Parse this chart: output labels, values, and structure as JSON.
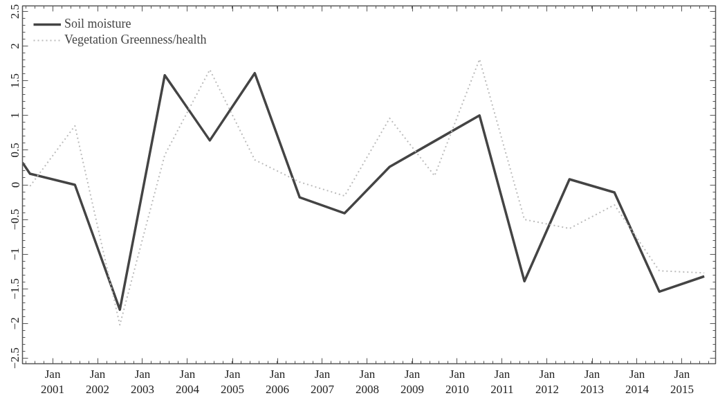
{
  "chart_data": {
    "type": "line",
    "xlim": [
      "2000-05",
      "2015-10"
    ],
    "xticks": [
      {
        "value": "2001-01",
        "label": "Jan\n2001"
      },
      {
        "value": "2002-01",
        "label": "Jan\n2002"
      },
      {
        "value": "2003-01",
        "label": "Jan\n2003"
      },
      {
        "value": "2004-01",
        "label": "Jan\n2004"
      },
      {
        "value": "2005-01",
        "label": "Jan\n2005"
      },
      {
        "value": "2006-01",
        "label": "Jan\n2006"
      },
      {
        "value": "2007-01",
        "label": "Jan\n2007"
      },
      {
        "value": "2008-01",
        "label": "Jan\n2008"
      },
      {
        "value": "2009-01",
        "label": "Jan\n2009"
      },
      {
        "value": "2010-01",
        "label": "Jan\n2010"
      },
      {
        "value": "2011-01",
        "label": "Jan\n2011"
      },
      {
        "value": "2012-01",
        "label": "Jan\n2012"
      },
      {
        "value": "2013-01",
        "label": "Jan\n2013"
      },
      {
        "value": "2014-01",
        "label": "Jan\n2014"
      },
      {
        "value": "2015-01",
        "label": "Jan\n2015"
      }
    ],
    "ylim": [
      -2.58,
      2.58
    ],
    "yticks": [
      {
        "value": -2.5,
        "label": "−2.5"
      },
      {
        "value": -2,
        "label": "−2"
      },
      {
        "value": -1.5,
        "label": "−1.5"
      },
      {
        "value": -1,
        "label": "−1"
      },
      {
        "value": -0.5,
        "label": "−0.5"
      },
      0,
      0.5,
      1,
      1.5,
      2,
      2.5
    ],
    "grid": false,
    "legend": "top left",
    "marker": "none",
    "series": [
      {
        "name": "Soil moisture",
        "color": "#444444",
        "line_style": "solid",
        "x": [
          "2000-05",
          "2000-07",
          "2001-07",
          "2002-07",
          "2003-07",
          "2004-07",
          "2005-07",
          "2006-07",
          "2007-07",
          "2008-07",
          "2009-07",
          "2010-07",
          "2011-07",
          "2012-07",
          "2013-07",
          "2014-07",
          "2015-07"
        ],
        "values": [
          0.32,
          0.16,
          0.0,
          -1.8,
          1.58,
          0.64,
          1.61,
          -0.18,
          -0.41,
          0.26,
          0.63,
          1.0,
          -1.39,
          0.08,
          -0.11,
          -1.54,
          -1.32
        ]
      },
      {
        "name": "Vegetation Greenness/health",
        "color": "#bbbbbb",
        "line_style": "dotted",
        "x": [
          "2000-07",
          "2001-07",
          "2002-07",
          "2003-07",
          "2004-07",
          "2005-07",
          "2006-07",
          "2007-07",
          "2008-07",
          "2009-07",
          "2010-07",
          "2011-07",
          "2012-07",
          "2013-07",
          "2014-07",
          "2015-07"
        ],
        "values": [
          -0.02,
          0.85,
          -2.02,
          0.43,
          1.66,
          0.36,
          0.04,
          -0.16,
          0.96,
          0.13,
          1.81,
          -0.5,
          -0.63,
          -0.29,
          -1.24,
          -1.27
        ]
      }
    ]
  }
}
